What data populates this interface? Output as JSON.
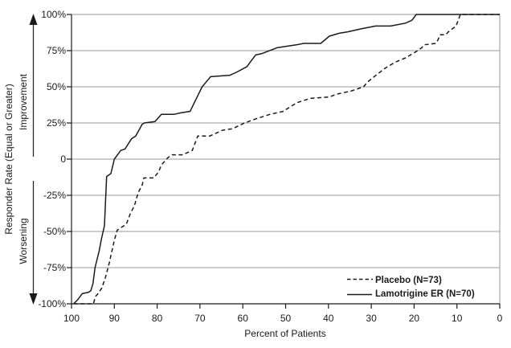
{
  "chart_data": {
    "type": "line",
    "title": "",
    "xlabel": "Percent of Patients",
    "ylabel": "Responder Rate (Equal or Greater)",
    "region_labels": {
      "upper": "Improvement",
      "lower": "Worsening"
    },
    "x_axis": {
      "reversed": true,
      "xlim": [
        100,
        0
      ],
      "tick_labels": [
        "100",
        "90",
        "80",
        "70",
        "60",
        "50",
        "40",
        "30",
        "20",
        "10",
        "0"
      ]
    },
    "y_axis": {
      "ylim": [
        -100,
        100
      ],
      "tick_step_percent": 25,
      "tick_labels": [
        "100%",
        "75%",
        "50%",
        "25%",
        "0",
        "-25%",
        "-50%",
        "-75%",
        "-100%"
      ]
    },
    "grid": true,
    "colors": {
      "line": "#1a1a1a",
      "grid": "#9a9a9a",
      "background": "#ffffff"
    },
    "legend": {
      "position": "lower-right",
      "entries": [
        {
          "label": "Placebo (N=73)",
          "style": "dashed"
        },
        {
          "label": "Lamotrigine ER (N=70)",
          "style": "solid"
        }
      ]
    },
    "series": [
      {
        "name": "Placebo (N=73)",
        "style": "dashed",
        "color": "#1a1a1a",
        "points": [
          [
            99.5,
            -100
          ],
          [
            94.9,
            -100
          ],
          [
            94.4,
            -95
          ],
          [
            93.8,
            -93
          ],
          [
            92.9,
            -89
          ],
          [
            92.1,
            -82
          ],
          [
            91.2,
            -72
          ],
          [
            90.6,
            -64
          ],
          [
            90,
            -56
          ],
          [
            89.3,
            -49
          ],
          [
            87.2,
            -45
          ],
          [
            86.3,
            -38
          ],
          [
            85.3,
            -32
          ],
          [
            84.4,
            -23
          ],
          [
            83.5,
            -18
          ],
          [
            83.1,
            -13
          ],
          [
            80.8,
            -13
          ],
          [
            79.7,
            -9
          ],
          [
            79,
            -4
          ],
          [
            77.5,
            1
          ],
          [
            76.5,
            3
          ],
          [
            74.1,
            3
          ],
          [
            71.8,
            6
          ],
          [
            70.5,
            16
          ],
          [
            67.7,
            16
          ],
          [
            64.7,
            20
          ],
          [
            62.4,
            21
          ],
          [
            59.6,
            25
          ],
          [
            56.8,
            28
          ],
          [
            53.6,
            31
          ],
          [
            50.6,
            33
          ],
          [
            47.4,
            39
          ],
          [
            44.2,
            42
          ],
          [
            39.8,
            43
          ],
          [
            38,
            45
          ],
          [
            34.8,
            47
          ],
          [
            31.8,
            50
          ],
          [
            31,
            53
          ],
          [
            28.9,
            58
          ],
          [
            26.7,
            63
          ],
          [
            24.4,
            67
          ],
          [
            22,
            70
          ],
          [
            19.7,
            74
          ],
          [
            18.2,
            77
          ],
          [
            17.7,
            79
          ],
          [
            15,
            80
          ],
          [
            14.5,
            82
          ],
          [
            13.9,
            86
          ],
          [
            12.6,
            86
          ],
          [
            12,
            88
          ],
          [
            10.2,
            92
          ],
          [
            9.2,
            100
          ],
          [
            0,
            100
          ]
        ]
      },
      {
        "name": "Lamotrigine ER (N=70)",
        "style": "solid",
        "color": "#1a1a1a",
        "points": [
          [
            99.5,
            -100
          ],
          [
            98.5,
            -97
          ],
          [
            97.5,
            -93
          ],
          [
            96,
            -92
          ],
          [
            95.5,
            -91
          ],
          [
            95,
            -86
          ],
          [
            94.5,
            -75
          ],
          [
            93.5,
            -63
          ],
          [
            93,
            -55
          ],
          [
            92.3,
            -46
          ],
          [
            91.8,
            -12
          ],
          [
            90.8,
            -10
          ],
          [
            90,
            0
          ],
          [
            88.5,
            6
          ],
          [
            87.5,
            7
          ],
          [
            86,
            14
          ],
          [
            85,
            16
          ],
          [
            83.5,
            24
          ],
          [
            83,
            25
          ],
          [
            80.5,
            26
          ],
          [
            79,
            31
          ],
          [
            76,
            31
          ],
          [
            74.5,
            32
          ],
          [
            72.3,
            33
          ],
          [
            71,
            41
          ],
          [
            69.5,
            50
          ],
          [
            67.5,
            57
          ],
          [
            63,
            58
          ],
          [
            61.5,
            60
          ],
          [
            59,
            64
          ],
          [
            58.3,
            67
          ],
          [
            57,
            72
          ],
          [
            55.5,
            73
          ],
          [
            52,
            77
          ],
          [
            47.5,
            79
          ],
          [
            45.8,
            80
          ],
          [
            41.8,
            80
          ],
          [
            39.8,
            85
          ],
          [
            37.5,
            87
          ],
          [
            35.5,
            88
          ],
          [
            32.5,
            90
          ],
          [
            29,
            92
          ],
          [
            25.5,
            92
          ],
          [
            22,
            94
          ],
          [
            20.5,
            96
          ],
          [
            19.5,
            100
          ],
          [
            0,
            100
          ]
        ]
      }
    ]
  }
}
